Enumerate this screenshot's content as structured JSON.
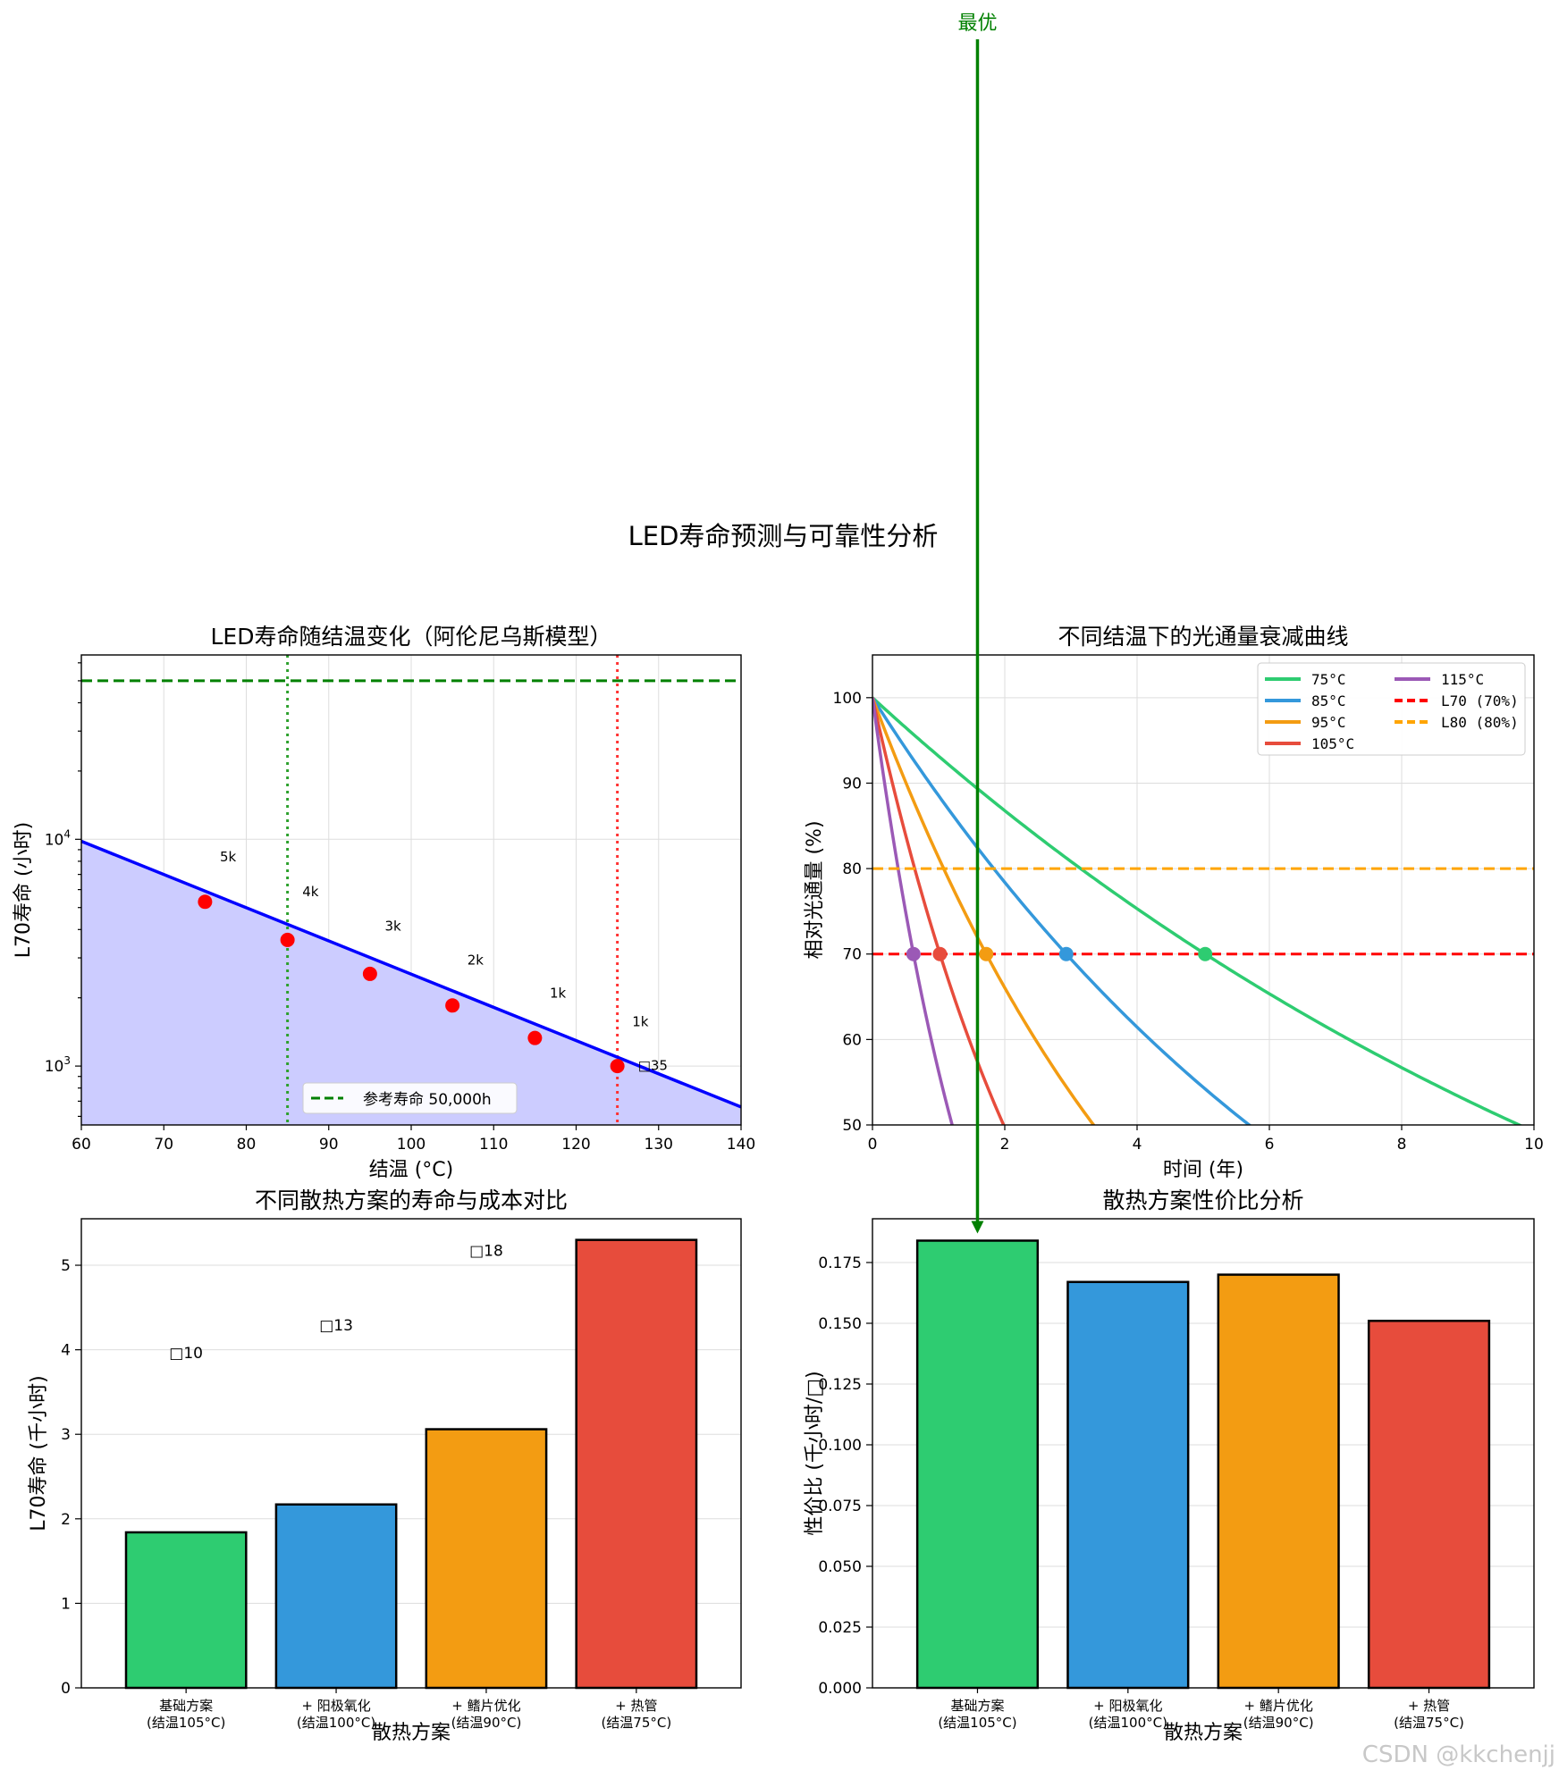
{
  "figure": {
    "suptitle": "LED寿命预测与可靠性分析",
    "watermark": "CSDN @kkchenjj",
    "annotation": {
      "text": "最优",
      "color": "#008000",
      "target_panel": 3,
      "target_category": 0
    }
  },
  "chart_data": [
    {
      "type": "line",
      "title": "LED寿命随结温变化（阿伦尼乌斯模型）",
      "xlabel": "结温 (°C)",
      "ylabel": "L70寿命 (小时)",
      "xlim": [
        60,
        140
      ],
      "ylim": [
        550,
        65000
      ],
      "yscale": "log",
      "grid": true,
      "xticks": [
        60,
        70,
        80,
        90,
        100,
        110,
        120,
        130,
        140
      ],
      "yticks": [
        1000,
        10000
      ],
      "ytick_labels": [
        [
          "10",
          "3"
        ],
        [
          "10",
          "4"
        ]
      ],
      "curve": {
        "x0": 60,
        "y0": 9800,
        "x1": 140,
        "y1": 660,
        "color": "#0000ff",
        "fill": "#ccccff"
      },
      "points": {
        "x": [
          75,
          85,
          95,
          105,
          115,
          125
        ],
        "y": [
          5300,
          3600,
          2550,
          1850,
          1330,
          1000
        ],
        "color": "#ff0000",
        "labels": [
          "5k",
          "4k",
          "3k",
          "2k",
          "1k",
          "1k"
        ],
        "label_y": [
          8000,
          5600,
          3950,
          2800,
          2000,
          1500
        ]
      },
      "extra_label": {
        "text": "□35",
        "x": 127.5,
        "y": 960
      },
      "reference_line": {
        "y": 50000,
        "color": "#008000",
        "label": "参考寿命 50,000h"
      },
      "vlines": [
        {
          "x": 85,
          "color": "#2ca02c"
        },
        {
          "x": 125,
          "color": "#ff3333"
        }
      ],
      "legend_position": "lower center"
    },
    {
      "type": "line",
      "title": "不同结温下的光通量衰减曲线",
      "xlabel": "时间 (年)",
      "ylabel": "相对光通量 (%)",
      "xlim": [
        0,
        10
      ],
      "ylim": [
        50,
        105
      ],
      "grid": true,
      "xticks": [
        0,
        2,
        4,
        6,
        8,
        10
      ],
      "yticks": [
        50,
        60,
        70,
        80,
        90,
        100
      ],
      "series": [
        {
          "name": "75°C",
          "color": "#2ecc71",
          "l70_year": 5.03
        },
        {
          "name": "85°C",
          "color": "#3498db",
          "l70_year": 2.93
        },
        {
          "name": "95°C",
          "color": "#f39c12",
          "l70_year": 1.72
        },
        {
          "name": "105°C",
          "color": "#e74c3c",
          "l70_year": 1.02
        },
        {
          "name": "115°C",
          "color": "#9b59b6",
          "l70_year": 0.62
        }
      ],
      "hlines": [
        {
          "y": 70,
          "color": "#ff0000",
          "label": "L70 (70%)"
        },
        {
          "y": 80,
          "color": "#ffa500",
          "label": "L80 (80%)"
        }
      ],
      "legend_position": "upper right"
    },
    {
      "type": "bar",
      "title": "不同散热方案的寿命与成本对比",
      "xlabel": "散热方案",
      "ylabel": "L70寿命 (千小时)",
      "ylim": [
        0,
        5.55
      ],
      "grid": true,
      "yticks": [
        0,
        1,
        2,
        3,
        4,
        5
      ],
      "categories": [
        [
          "基础方案",
          "(结温105°C)"
        ],
        [
          "+ 阳极氧化",
          "(结温100°C)"
        ],
        [
          "+ 鳍片优化",
          "(结温90°C)"
        ],
        [
          "+ 热管",
          "(结温75°C)"
        ]
      ],
      "values": [
        1.84,
        2.17,
        3.06,
        5.3
      ],
      "colors": [
        "#2ecc71",
        "#3498db",
        "#f39c12",
        "#e74c3c"
      ],
      "cost_labels": [
        "□10",
        "□13",
        "□18",
        ""
      ],
      "cost_label_y": [
        3.9,
        4.23,
        5.11,
        0
      ]
    },
    {
      "type": "bar",
      "title": "散热方案性价比分析",
      "xlabel": "散热方案",
      "ylabel": "性价比 (千小时/□)",
      "ylim": [
        0,
        0.193
      ],
      "grid": true,
      "yticks": [
        0.0,
        0.025,
        0.05,
        0.075,
        0.1,
        0.125,
        0.15,
        0.175
      ],
      "categories": [
        [
          "基础方案",
          "(结温105°C)"
        ],
        [
          "+ 阳极氧化",
          "(结温100°C)"
        ],
        [
          "+ 鳍片优化",
          "(结温90°C)"
        ],
        [
          "+ 热管",
          "(结温75°C)"
        ]
      ],
      "values": [
        0.184,
        0.167,
        0.17,
        0.151
      ],
      "colors": [
        "#2ecc71",
        "#3498db",
        "#f39c12",
        "#e74c3c"
      ]
    }
  ]
}
